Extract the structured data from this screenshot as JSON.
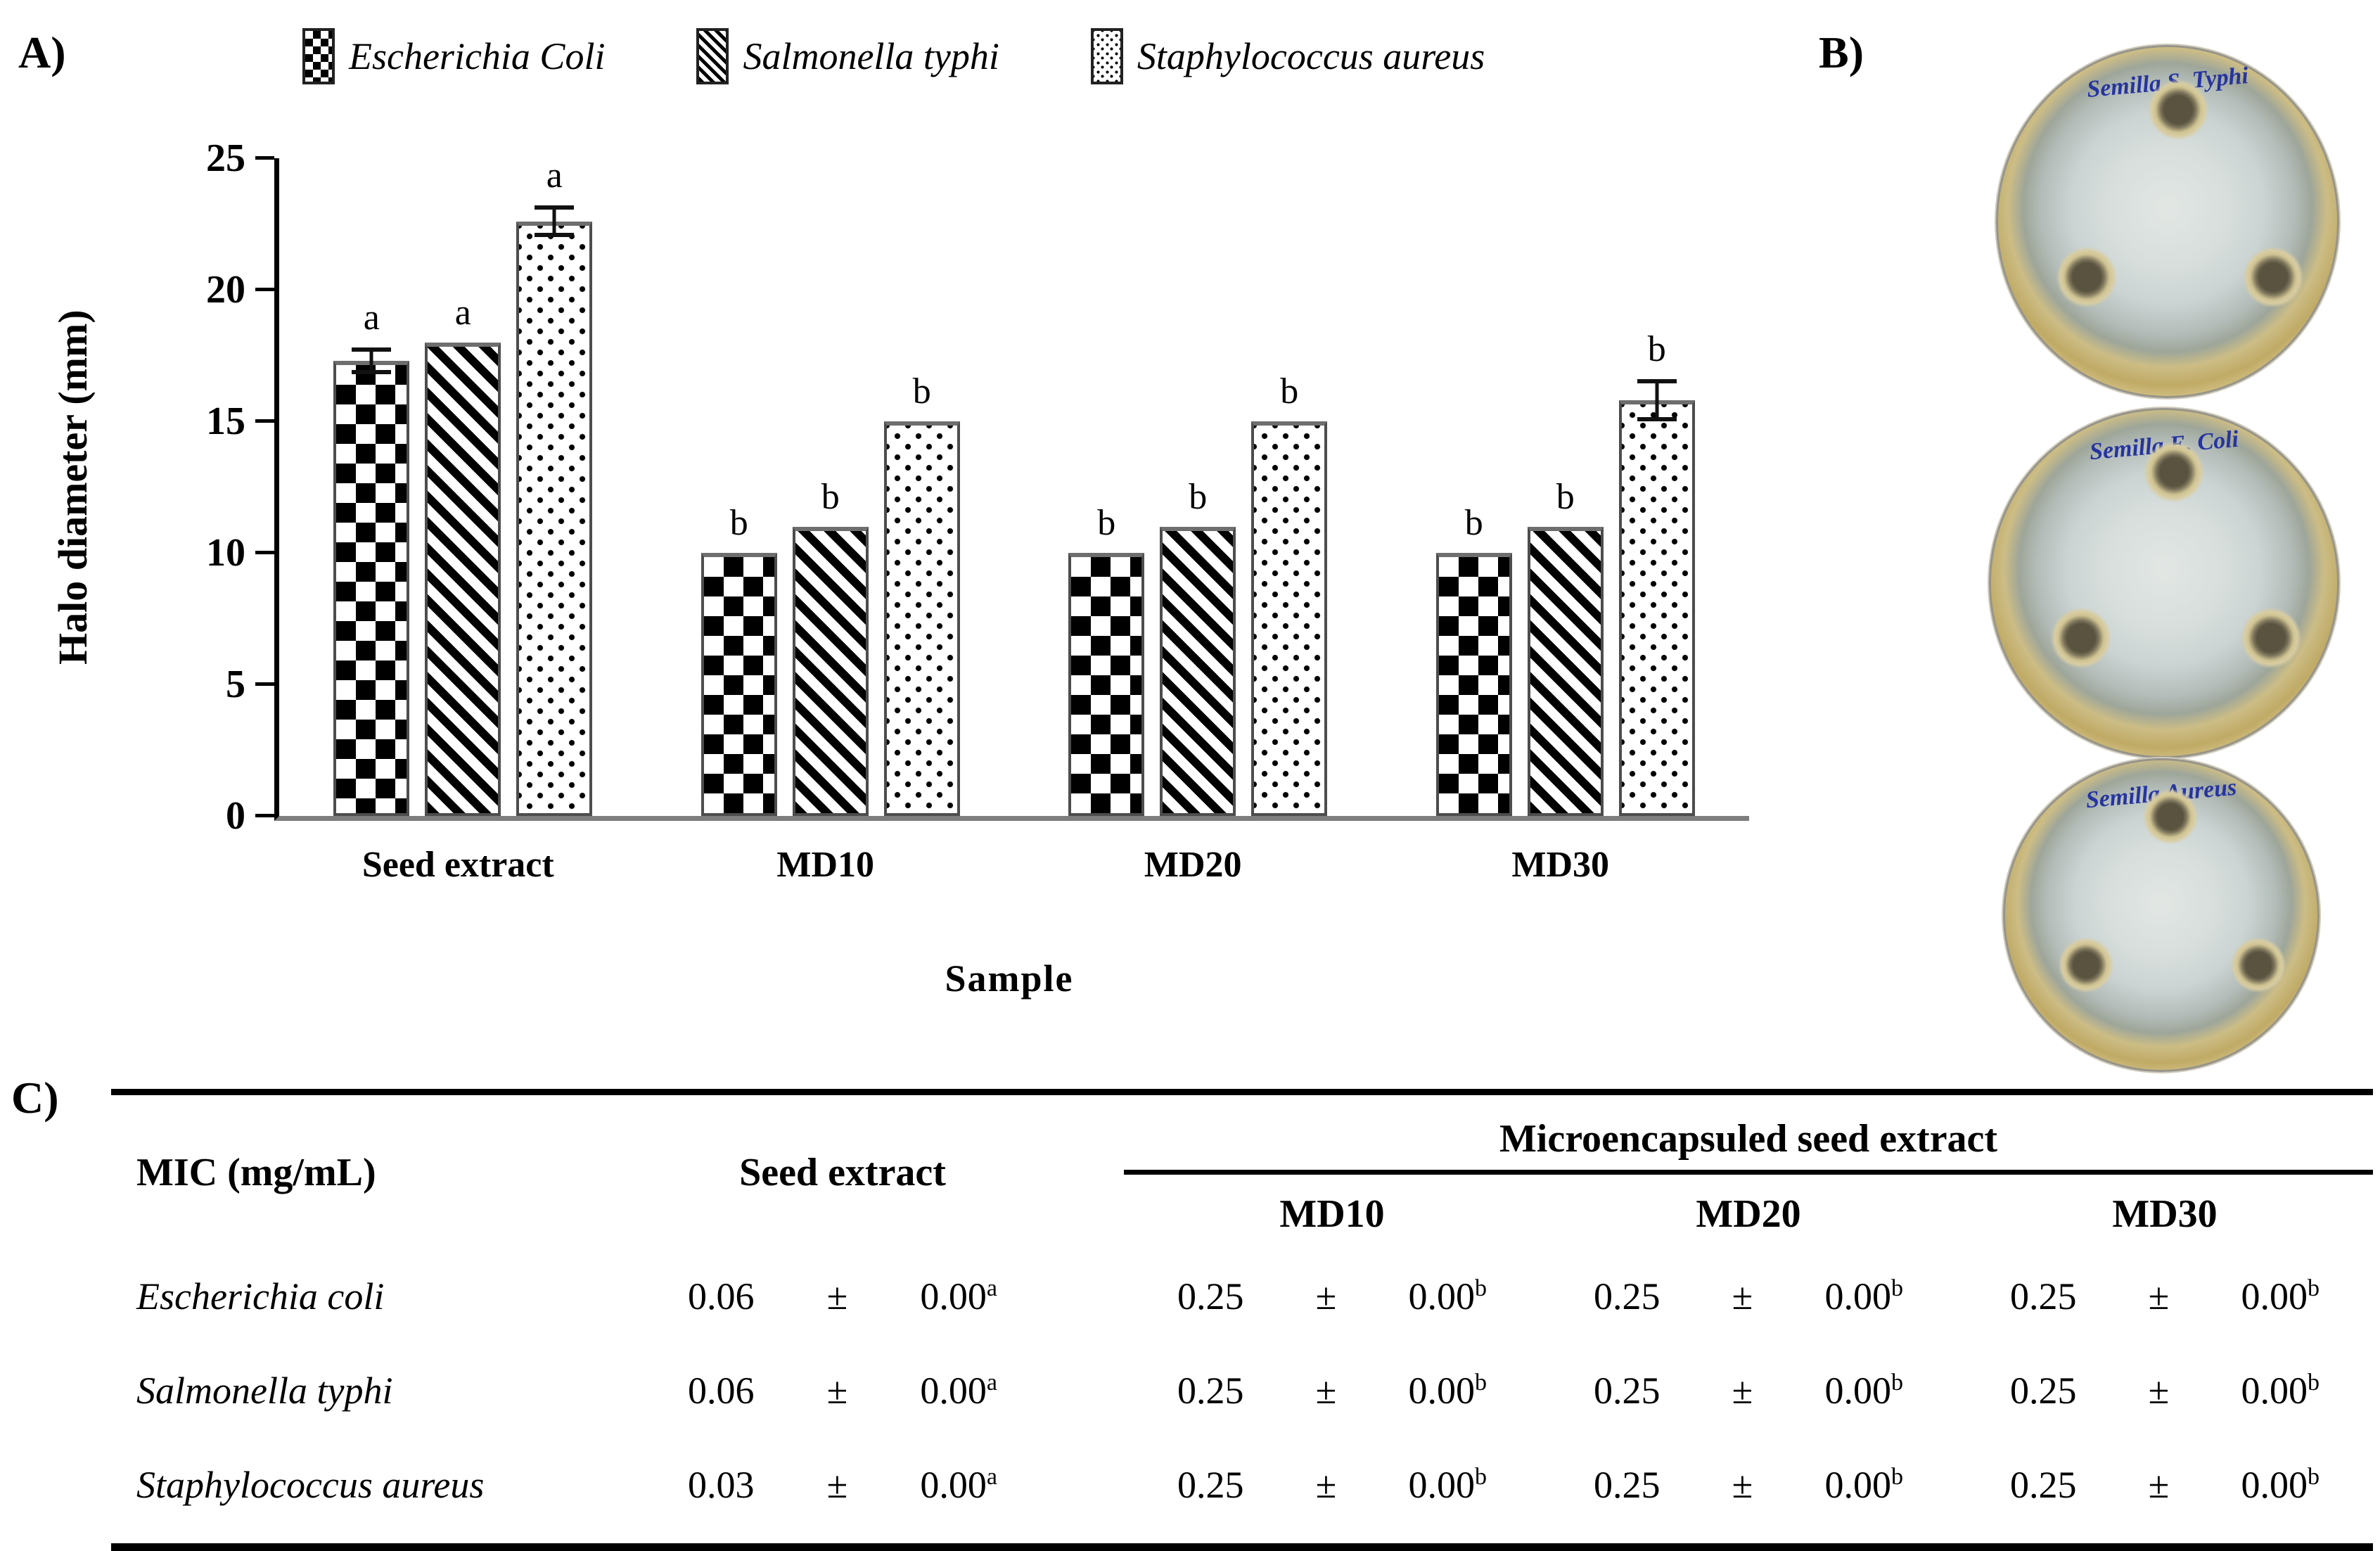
{
  "panels": {
    "a_label": "A)",
    "b_label": "B)",
    "c_label": "C)"
  },
  "chart_data": {
    "type": "bar",
    "title": "",
    "xlabel": "Sample",
    "ylabel": "Halo diameter (mm)",
    "ylim": [
      0,
      25
    ],
    "yticks": [
      0,
      5,
      10,
      15,
      20,
      25
    ],
    "grid": false,
    "legend_position": "top",
    "categories": [
      "Seed extract",
      "MD10",
      "MD20",
      "MD30"
    ],
    "series": [
      {
        "name": "Escherichia Coli",
        "pattern": "diamond",
        "values": [
          17.3,
          10,
          10,
          10
        ],
        "errors": [
          0.5,
          0,
          0,
          0
        ],
        "letters": [
          "a",
          "b",
          "b",
          "b"
        ]
      },
      {
        "name": "Salmonella typhi",
        "pattern": "diagonal",
        "values": [
          18,
          11,
          11,
          11
        ],
        "errors": [
          0,
          0,
          0,
          0
        ],
        "letters": [
          "a",
          "b",
          "b",
          "b"
        ]
      },
      {
        "name": "Staphylococcus aureus",
        "pattern": "dots",
        "values": [
          22.6,
          15,
          15,
          15.8
        ],
        "errors": [
          0.6,
          0,
          0,
          0.8
        ],
        "letters": [
          "a",
          "b",
          "b",
          "b"
        ]
      }
    ]
  },
  "dishes": [
    {
      "label": "Semilla S. Typhi"
    },
    {
      "label": "Semilla E. Coli"
    },
    {
      "label": "Semilla Aureus"
    }
  ],
  "colors": {
    "ink_blue": "#26349f",
    "dish_rim": "#c0aa66",
    "agar": "#cbd4d3",
    "axis_gray": "#7e7e7e"
  },
  "table": {
    "row_header": "MIC (mg/mL)",
    "col_seed": "Seed extract",
    "group_header": "Microencapsuled seed extract",
    "sub_headers": [
      "MD10",
      "MD20",
      "MD30"
    ],
    "pm": "±",
    "rows": [
      {
        "organism": "Escherichia coli",
        "cells": [
          {
            "value": "0.06",
            "err": "0.00",
            "sup": "a"
          },
          {
            "value": "0.25",
            "err": "0.00",
            "sup": "b"
          },
          {
            "value": "0.25",
            "err": "0.00",
            "sup": "b"
          },
          {
            "value": "0.25",
            "err": "0.00",
            "sup": "b"
          }
        ]
      },
      {
        "organism": "Salmonella typhi",
        "cells": [
          {
            "value": "0.06",
            "err": "0.00",
            "sup": "a"
          },
          {
            "value": "0.25",
            "err": "0.00",
            "sup": "b"
          },
          {
            "value": "0.25",
            "err": "0.00",
            "sup": "b"
          },
          {
            "value": "0.25",
            "err": "0.00",
            "sup": "b"
          }
        ]
      },
      {
        "organism": "Staphylococcus aureus",
        "cells": [
          {
            "value": "0.03",
            "err": "0.00",
            "sup": "a"
          },
          {
            "value": "0.25",
            "err": "0.00",
            "sup": "b"
          },
          {
            "value": "0.25",
            "err": "0.00",
            "sup": "b"
          },
          {
            "value": "0.25",
            "err": "0.00",
            "sup": "b"
          }
        ]
      }
    ]
  }
}
